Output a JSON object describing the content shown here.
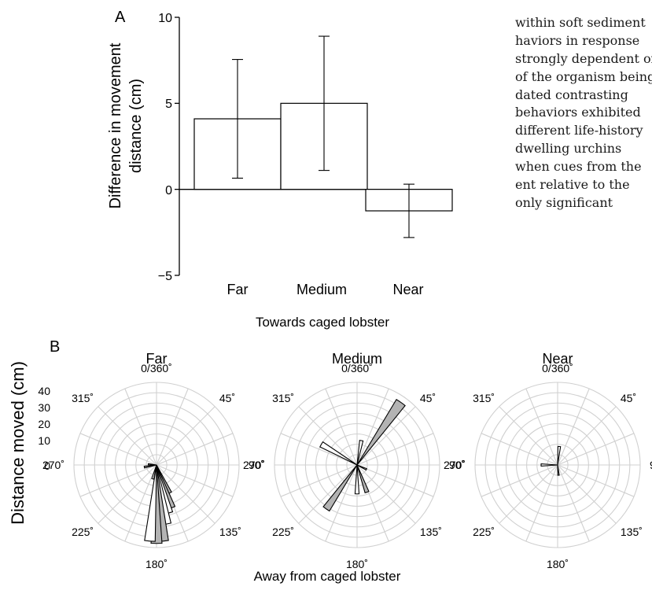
{
  "chart_data": [
    {
      "panel": "A",
      "type": "bar",
      "categories": [
        "Far",
        "Medium",
        "Near"
      ],
      "values": [
        4.1,
        5.0,
        -1.25
      ],
      "error_low": [
        0.65,
        1.1,
        -2.8
      ],
      "error_high": [
        7.55,
        8.9,
        0.3
      ],
      "ylabel": "Difference in movement distance (cm)",
      "ylabel_lines": [
        "Difference in movement",
        "distance (cm)"
      ],
      "xlabel": "Towards caged lobster",
      "ylim": [
        -5,
        10
      ],
      "yticks": [
        "10",
        "5",
        "0",
        "−5"
      ],
      "bar_color": "#ffffff"
    },
    {
      "panel": "B",
      "type": "polar-histogram",
      "ylabel": "Distance moved (cm)",
      "xlabel": "Away from caged lobster",
      "radial_ticks": [
        "40",
        "30",
        "20",
        "10",
        "0"
      ],
      "rmax": 40,
      "angle_labels": {
        "a0": "0/360˚",
        "a45": "45˚",
        "a90": "90˚",
        "a135": "135˚",
        "a180": "180˚",
        "a225": "225˚",
        "a270": "270˚",
        "a315": "315˚"
      },
      "colors": {
        "grid": "#d0d0d0",
        "shaded": "#b3b3b3",
        "open": "#ffffff"
      },
      "subplots": [
        {
          "title": "Far",
          "wedges": [
            {
              "angle": 155,
              "r": 15,
              "fill": "shaded"
            },
            {
              "angle": 160,
              "r": 22,
              "fill": "shaded"
            },
            {
              "angle": 165,
              "r": 24,
              "fill": "open"
            },
            {
              "angle": 170,
              "r": 29,
              "fill": "open"
            },
            {
              "angle": 175,
              "r": 37,
              "fill": "shaded"
            },
            {
              "angle": 180,
              "r": 38,
              "fill": "shaded"
            },
            {
              "angle": 185,
              "r": 37,
              "fill": "open"
            },
            {
              "angle": 195,
              "r": 7,
              "fill": "open"
            },
            {
              "angle": 260,
              "r": 6,
              "fill": "shaded"
            },
            {
              "angle": 275,
              "r": 4,
              "fill": "open"
            }
          ]
        },
        {
          "title": "Medium",
          "wedges": [
            {
              "angle": 35,
              "r": 37,
              "fill": "shaded"
            },
            {
              "angle": 10,
              "r": 12,
              "fill": "open"
            },
            {
              "angle": 115,
              "r": 5,
              "fill": "open"
            },
            {
              "angle": 160,
              "r": 14,
              "fill": "shaded"
            },
            {
              "angle": 180,
              "r": 14,
              "fill": "open"
            },
            {
              "angle": 215,
              "r": 26,
              "fill": "shaded"
            },
            {
              "angle": 300,
              "r": 20,
              "fill": "open"
            }
          ]
        },
        {
          "title": "Near",
          "wedges": [
            {
              "angle": 5,
              "r": 9,
              "fill": "open"
            },
            {
              "angle": 175,
              "r": 5,
              "fill": "shaded"
            },
            {
              "angle": 270,
              "r": 8,
              "fill": "open"
            }
          ]
        }
      ]
    }
  ],
  "panel_labels": {
    "a": "A",
    "b": "B"
  },
  "body_text": [
    "within soft sediment",
    "haviors in response",
    "strongly dependent on",
    "of the organism being",
    "dated contrasting",
    "behaviors exhibited",
    "different life-history",
    "dwelling urchins",
    "when cues from the",
    "ent relative to the",
    "only significant"
  ]
}
